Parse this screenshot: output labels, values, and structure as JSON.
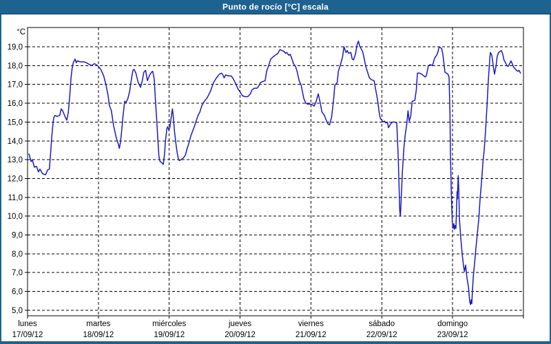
{
  "window": {
    "title": "Punto de rocío [°C] escala"
  },
  "colors": {
    "titlebar": "#1e6290",
    "titlebar_text": "#ffffff",
    "frame": "#1e6290",
    "titlebar_border": "#173c5a",
    "plot_background": "#ffffff",
    "axis_and_grid": "#000000",
    "series_line": "#1818c8"
  },
  "chart_data": {
    "type": "line",
    "title": "Punto de rocío [°C] escala",
    "legend": "none",
    "grid": {
      "style": "dashed",
      "color": "#000000",
      "horizontal": true,
      "vertical": true
    },
    "y_axis": {
      "label": "°C",
      "min": 5.0,
      "max": 19.0,
      "step": 1.0,
      "tick_labels": [
        "19,0",
        "18,0",
        "17,0",
        "16,0",
        "15,0",
        "14,0",
        "13,0",
        "12,0",
        "11,0",
        "10,0",
        "9,0",
        "8,0",
        "7,0",
        "6,0",
        "5,0"
      ],
      "ylim": [
        4.7,
        19.8
      ]
    },
    "x_axis": {
      "hours_total": 167,
      "hours_per_day": 24,
      "days": [
        {
          "name": "lunes",
          "date": "17/09/12"
        },
        {
          "name": "martes",
          "date": "18/09/12"
        },
        {
          "name": "miércoles",
          "date": "19/09/12"
        },
        {
          "name": "jueves",
          "date": "20/09/12"
        },
        {
          "name": "viernes",
          "date": "21/09/12"
        },
        {
          "name": "sábado",
          "date": "22/09/12"
        },
        {
          "name": "domingo",
          "date": "23/09/12"
        }
      ]
    },
    "series": [
      {
        "name": "Punto de rocío",
        "color": "#1818c8",
        "x_unit": "hours since Mon 17/09/12 00:00",
        "y_unit": "°C",
        "points": [
          [
            0.5,
            13.3
          ],
          [
            1.2,
            12.9
          ],
          [
            1.6,
            13.0
          ],
          [
            2.3,
            12.6
          ],
          [
            3.0,
            12.65
          ],
          [
            3.7,
            12.35
          ],
          [
            4.2,
            12.5
          ],
          [
            5.1,
            12.25
          ],
          [
            6.1,
            12.2
          ],
          [
            6.8,
            12.45
          ],
          [
            7.4,
            12.5
          ],
          [
            7.8,
            13.3
          ],
          [
            8.2,
            14.2
          ],
          [
            8.6,
            14.9
          ],
          [
            8.9,
            15.25
          ],
          [
            9.3,
            15.35
          ],
          [
            10.0,
            15.3
          ],
          [
            10.9,
            15.35
          ],
          [
            11.4,
            15.7
          ],
          [
            11.9,
            15.6
          ],
          [
            12.3,
            15.45
          ],
          [
            12.8,
            15.25
          ],
          [
            13.3,
            15.1
          ],
          [
            13.8,
            15.5
          ],
          [
            14.1,
            16.0
          ],
          [
            14.4,
            16.6
          ],
          [
            14.7,
            17.3
          ],
          [
            15.1,
            17.85
          ],
          [
            15.5,
            18.15
          ],
          [
            16.1,
            18.35
          ],
          [
            16.5,
            18.15
          ],
          [
            16.9,
            18.25
          ],
          [
            17.9,
            18.2
          ],
          [
            19.1,
            18.2
          ],
          [
            20.0,
            18.15
          ],
          [
            21.0,
            18.05
          ],
          [
            21.7,
            18.0
          ],
          [
            22.6,
            18.1
          ],
          [
            23.3,
            18.05
          ],
          [
            24.0,
            17.95
          ],
          [
            24.8,
            17.8
          ],
          [
            25.8,
            17.45
          ],
          [
            26.6,
            16.95
          ],
          [
            27.3,
            16.4
          ],
          [
            27.7,
            15.9
          ],
          [
            28.4,
            15.6
          ],
          [
            29.1,
            14.85
          ],
          [
            30.0,
            14.2
          ],
          [
            30.8,
            13.8
          ],
          [
            31.1,
            13.6
          ],
          [
            31.5,
            13.95
          ],
          [
            31.9,
            14.55
          ],
          [
            32.3,
            15.25
          ],
          [
            32.9,
            16.1
          ],
          [
            33.4,
            16.05
          ],
          [
            34.0,
            16.25
          ],
          [
            34.6,
            16.65
          ],
          [
            35.2,
            17.3
          ],
          [
            35.7,
            17.75
          ],
          [
            36.1,
            17.8
          ],
          [
            36.7,
            17.6
          ],
          [
            37.5,
            17.1
          ],
          [
            38.3,
            16.85
          ],
          [
            38.8,
            17.15
          ],
          [
            39.4,
            17.65
          ],
          [
            40.0,
            17.75
          ],
          [
            40.6,
            17.2
          ],
          [
            41.4,
            17.5
          ],
          [
            42.0,
            17.65
          ],
          [
            42.4,
            17.7
          ],
          [
            42.9,
            17.3
          ],
          [
            43.3,
            16.2
          ],
          [
            43.7,
            15.25
          ],
          [
            44.1,
            14.2
          ],
          [
            44.5,
            13.2
          ],
          [
            44.9,
            12.9
          ],
          [
            45.4,
            12.85
          ],
          [
            46.0,
            12.75
          ],
          [
            46.4,
            13.3
          ],
          [
            46.7,
            13.95
          ],
          [
            47.2,
            14.65
          ],
          [
            47.5,
            14.75
          ],
          [
            47.9,
            14.55
          ],
          [
            48.3,
            14.8
          ],
          [
            48.8,
            15.4
          ],
          [
            49.1,
            15.7
          ],
          [
            49.4,
            15.25
          ],
          [
            49.8,
            14.5
          ],
          [
            50.2,
            13.95
          ],
          [
            50.6,
            13.45
          ],
          [
            51.0,
            13.1
          ],
          [
            51.4,
            12.95
          ],
          [
            52.0,
            13.0
          ],
          [
            52.8,
            13.1
          ],
          [
            53.5,
            13.25
          ],
          [
            54.0,
            13.55
          ],
          [
            54.5,
            13.8
          ],
          [
            55.4,
            14.3
          ],
          [
            56.6,
            14.8
          ],
          [
            57.3,
            15.15
          ],
          [
            57.9,
            15.4
          ],
          [
            58.3,
            15.5
          ],
          [
            59.1,
            15.9
          ],
          [
            59.9,
            16.1
          ],
          [
            60.9,
            16.3
          ],
          [
            62.0,
            16.65
          ],
          [
            63.0,
            17.1
          ],
          [
            64.0,
            17.35
          ],
          [
            65.0,
            17.55
          ],
          [
            65.7,
            17.6
          ],
          [
            66.2,
            17.5
          ],
          [
            66.6,
            17.35
          ],
          [
            67.1,
            17.5
          ],
          [
            68.2,
            17.45
          ],
          [
            69.0,
            17.45
          ],
          [
            69.7,
            17.3
          ],
          [
            70.5,
            17.05
          ],
          [
            71.3,
            16.75
          ],
          [
            72.0,
            16.6
          ],
          [
            72.8,
            16.4
          ],
          [
            73.6,
            16.35
          ],
          [
            74.6,
            16.35
          ],
          [
            75.5,
            16.5
          ],
          [
            76.0,
            16.7
          ],
          [
            76.8,
            16.8
          ],
          [
            77.7,
            16.8
          ],
          [
            78.3,
            16.9
          ],
          [
            78.9,
            17.1
          ],
          [
            79.7,
            17.15
          ],
          [
            80.5,
            17.2
          ],
          [
            81.0,
            17.7
          ],
          [
            81.7,
            18.0
          ],
          [
            82.4,
            18.35
          ],
          [
            83.1,
            18.45
          ],
          [
            83.9,
            18.55
          ],
          [
            84.8,
            18.65
          ],
          [
            85.5,
            18.85
          ],
          [
            86.2,
            18.8
          ],
          [
            86.9,
            18.75
          ],
          [
            87.4,
            18.65
          ],
          [
            87.8,
            18.7
          ],
          [
            88.5,
            18.55
          ],
          [
            89.0,
            18.6
          ],
          [
            89.7,
            18.3
          ],
          [
            90.1,
            18.1
          ],
          [
            90.8,
            17.95
          ],
          [
            91.3,
            17.7
          ],
          [
            92.0,
            17.2
          ],
          [
            92.7,
            16.95
          ],
          [
            93.6,
            16.25
          ],
          [
            94.3,
            16.0
          ],
          [
            95.0,
            15.95
          ],
          [
            96.0,
            15.95
          ],
          [
            96.7,
            15.9
          ],
          [
            97.1,
            15.85
          ],
          [
            97.8,
            16.1
          ],
          [
            98.5,
            16.5
          ],
          [
            99.2,
            16.0
          ],
          [
            99.7,
            15.55
          ],
          [
            100.6,
            15.35
          ],
          [
            101.3,
            15.05
          ],
          [
            101.8,
            14.9
          ],
          [
            102.3,
            14.85
          ],
          [
            103.0,
            15.25
          ],
          [
            103.7,
            16.2
          ],
          [
            104.1,
            16.95
          ],
          [
            104.9,
            17.1
          ],
          [
            105.3,
            17.7
          ],
          [
            106.0,
            18.05
          ],
          [
            106.7,
            18.45
          ],
          [
            107.2,
            19.0
          ],
          [
            107.9,
            18.7
          ],
          [
            108.3,
            18.8
          ],
          [
            108.8,
            18.65
          ],
          [
            109.5,
            18.7
          ],
          [
            110.0,
            18.35
          ],
          [
            110.4,
            18.3
          ],
          [
            111.1,
            18.6
          ],
          [
            111.6,
            19.1
          ],
          [
            112.1,
            19.3
          ],
          [
            112.5,
            19.05
          ],
          [
            113.5,
            18.75
          ],
          [
            113.9,
            18.5
          ],
          [
            114.6,
            17.95
          ],
          [
            115.1,
            17.7
          ],
          [
            115.8,
            17.35
          ],
          [
            116.5,
            17.25
          ],
          [
            117.4,
            17.2
          ],
          [
            118.1,
            16.6
          ],
          [
            118.6,
            16.15
          ],
          [
            119.1,
            15.55
          ],
          [
            119.5,
            15.2
          ],
          [
            120.0,
            15.1
          ],
          [
            120.5,
            15.0
          ],
          [
            120.9,
            15.05
          ],
          [
            121.4,
            14.95
          ],
          [
            121.9,
            15.0
          ],
          [
            122.3,
            14.7
          ],
          [
            123.0,
            14.9
          ],
          [
            123.7,
            15.0
          ],
          [
            124.4,
            15.0
          ],
          [
            125.1,
            14.95
          ],
          [
            125.6,
            13.0
          ],
          [
            126.1,
            10.3
          ],
          [
            126.3,
            10.0
          ],
          [
            126.5,
            10.55
          ],
          [
            127.0,
            12.4
          ],
          [
            127.5,
            13.6
          ],
          [
            127.9,
            14.25
          ],
          [
            128.4,
            14.8
          ],
          [
            128.9,
            15.6
          ],
          [
            129.3,
            15.05
          ],
          [
            129.8,
            15.3
          ],
          [
            130.3,
            16.1
          ],
          [
            131.2,
            16.15
          ],
          [
            131.7,
            16.7
          ],
          [
            132.1,
            17.6
          ],
          [
            132.8,
            17.6
          ],
          [
            133.5,
            17.55
          ],
          [
            134.7,
            17.4
          ],
          [
            135.1,
            17.45
          ],
          [
            135.8,
            18.0
          ],
          [
            136.5,
            18.05
          ],
          [
            137.2,
            18.0
          ],
          [
            137.9,
            18.4
          ],
          [
            138.6,
            18.55
          ],
          [
            139.1,
            18.75
          ],
          [
            139.4,
            19.0
          ],
          [
            139.9,
            18.95
          ],
          [
            140.3,
            18.9
          ],
          [
            140.7,
            18.6
          ],
          [
            141.0,
            18.2
          ],
          [
            141.4,
            17.65
          ],
          [
            141.9,
            17.6
          ],
          [
            142.4,
            17.55
          ],
          [
            142.8,
            17.4
          ],
          [
            143.1,
            15.5
          ],
          [
            143.3,
            13.1
          ],
          [
            143.6,
            11.0
          ],
          [
            143.9,
            9.7
          ],
          [
            144.1,
            9.35
          ],
          [
            144.4,
            9.6
          ],
          [
            144.6,
            9.3
          ],
          [
            144.9,
            9.5
          ],
          [
            145.1,
            9.35
          ],
          [
            145.3,
            10.2
          ],
          [
            145.5,
            11.3
          ],
          [
            145.6,
            10.9
          ],
          [
            145.9,
            12.15
          ],
          [
            146.1,
            11.4
          ],
          [
            146.3,
            9.9
          ],
          [
            146.8,
            8.8
          ],
          [
            147.3,
            7.9
          ],
          [
            147.7,
            7.35
          ],
          [
            148.0,
            7.05
          ],
          [
            148.4,
            7.4
          ],
          [
            148.9,
            6.7
          ],
          [
            149.4,
            6.2
          ],
          [
            149.8,
            5.45
          ],
          [
            150.1,
            5.3
          ],
          [
            150.3,
            5.55
          ],
          [
            150.5,
            5.35
          ],
          [
            150.7,
            6.0
          ],
          [
            151.0,
            6.75
          ],
          [
            151.5,
            7.6
          ],
          [
            151.9,
            8.3
          ],
          [
            152.4,
            9.1
          ],
          [
            152.9,
            9.9
          ],
          [
            153.3,
            10.9
          ],
          [
            153.8,
            11.8
          ],
          [
            154.3,
            12.9
          ],
          [
            154.7,
            13.5
          ],
          [
            155.2,
            14.6
          ],
          [
            155.7,
            16.0
          ],
          [
            156.1,
            17.2
          ],
          [
            156.6,
            18.35
          ],
          [
            156.8,
            18.7
          ],
          [
            157.3,
            18.55
          ],
          [
            157.7,
            18.05
          ],
          [
            158.2,
            17.55
          ],
          [
            158.7,
            17.95
          ],
          [
            159.1,
            18.5
          ],
          [
            159.6,
            18.7
          ],
          [
            160.1,
            18.75
          ],
          [
            160.5,
            18.8
          ],
          [
            161.0,
            18.6
          ],
          [
            161.4,
            18.3
          ],
          [
            161.9,
            18.15
          ],
          [
            162.4,
            18.0
          ],
          [
            162.8,
            17.95
          ],
          [
            163.3,
            18.1
          ],
          [
            163.8,
            18.25
          ],
          [
            164.2,
            18.1
          ],
          [
            164.7,
            17.9
          ],
          [
            165.1,
            17.85
          ],
          [
            165.6,
            17.75
          ],
          [
            166.1,
            17.7
          ],
          [
            166.5,
            17.75
          ],
          [
            167.0,
            17.6
          ]
        ]
      }
    ]
  }
}
